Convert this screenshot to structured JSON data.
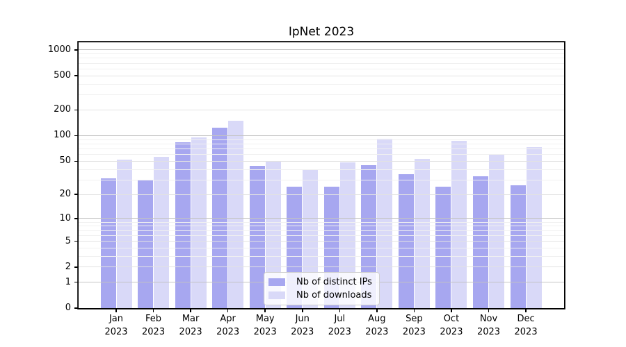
{
  "chart_data": {
    "type": "bar",
    "title": "IpNet 2023",
    "categories": [
      "Jan",
      "Feb",
      "Mar",
      "Apr",
      "May",
      "Jun",
      "Jul",
      "Aug",
      "Sep",
      "Oct",
      "Nov",
      "Dec"
    ],
    "category_year": "2023",
    "series": [
      {
        "name": "Nb of distinct IPs",
        "color": "#a7a7f0",
        "values": [
          31,
          30,
          84,
          123,
          44,
          25,
          25,
          45,
          35,
          25,
          33,
          26
        ]
      },
      {
        "name": "Nb of downloads",
        "color": "#d9d9f8",
        "values": [
          52,
          56,
          95,
          150,
          50,
          39,
          48,
          91,
          53,
          87,
          60,
          73
        ]
      }
    ],
    "y_scale": "log1p",
    "ylim": [
      0,
      1230
    ],
    "y_ticks": [
      0,
      1,
      2,
      5,
      10,
      20,
      50,
      100,
      200,
      500,
      1000
    ],
    "y_minor_ticks": [
      3,
      4,
      6,
      7,
      8,
      9,
      30,
      40,
      60,
      70,
      80,
      90,
      300,
      400,
      600,
      700,
      800,
      900
    ],
    "grid": true,
    "legend_position": "lower center"
  },
  "colors": {
    "bar_distinct_ips": "#a7a7f0",
    "bar_downloads": "#d9d9f8",
    "grid_major_decade": "#c3c3c3",
    "grid_major": "#e2e2e2",
    "grid_minor": "#f0f0f0",
    "axis": "#000000",
    "legend_border": "#cfcfcf"
  }
}
